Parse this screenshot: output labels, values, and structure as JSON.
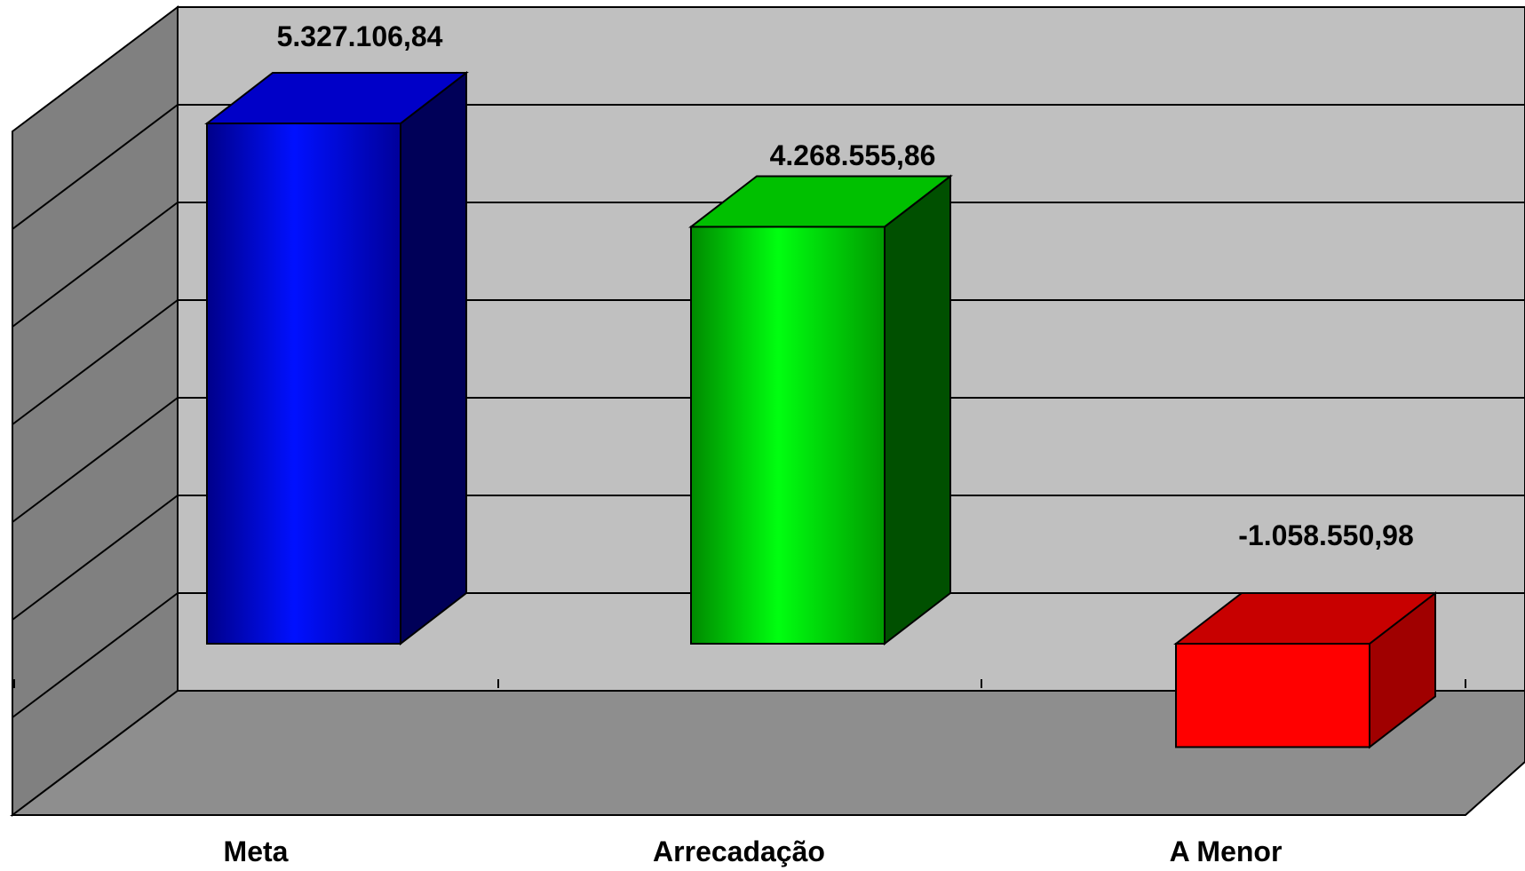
{
  "chart_data": {
    "type": "bar",
    "three_d": true,
    "categories": [
      "Meta",
      "Arrecadação",
      "A Menor"
    ],
    "values": [
      5327106.84,
      4268555.86,
      -1058550.98
    ],
    "value_labels": [
      "5.327.106,84",
      "4.268.555,86",
      "-1.058.550,98"
    ],
    "colors": [
      "#0000ff",
      "#00ee00",
      "#ff0000"
    ],
    "ylim": [
      -1000000,
      6000000
    ],
    "grid": true,
    "legend": "none",
    "title": "",
    "xlabel": "",
    "ylabel": ""
  }
}
